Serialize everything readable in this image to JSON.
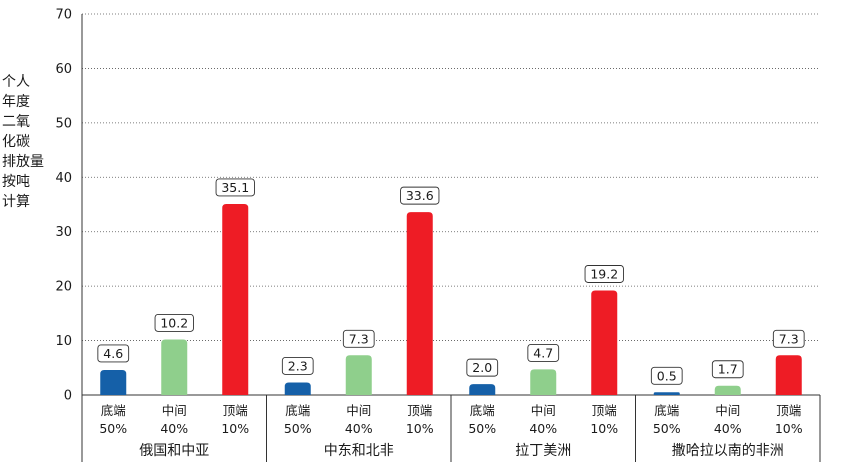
{
  "chart_data": {
    "type": "bar",
    "ylabel_lines": [
      "个人",
      "年度",
      "二氧",
      "化碳",
      "排放量",
      "按吨",
      "计算"
    ],
    "ylim": [
      0,
      70
    ],
    "yticks": [
      0,
      10,
      20,
      30,
      40,
      50,
      60,
      70
    ],
    "grid": "horizontal-dotted",
    "groups": [
      "俄国和中亚",
      "中东和北非",
      "拉丁美洲",
      "撒哈拉以南的非洲"
    ],
    "categories": [
      {
        "name": "底端",
        "pct": "50%",
        "color": "#1560a8"
      },
      {
        "name": "中间",
        "pct": "40%",
        "color": "#8fcf8c"
      },
      {
        "name": "顶端",
        "pct": "10%",
        "color": "#ee1c25"
      }
    ],
    "values": [
      [
        4.6,
        10.2,
        35.1
      ],
      [
        2.3,
        7.3,
        33.6
      ],
      [
        2.0,
        4.7,
        19.2
      ],
      [
        0.5,
        1.7,
        7.3
      ]
    ],
    "labels": [
      [
        "4.6",
        "10.2",
        "35.1"
      ],
      [
        "2.3",
        "7.3",
        "33.6"
      ],
      [
        "2.0",
        "4.7",
        "19.2"
      ],
      [
        "0.5",
        "1.7",
        "7.3"
      ]
    ]
  }
}
